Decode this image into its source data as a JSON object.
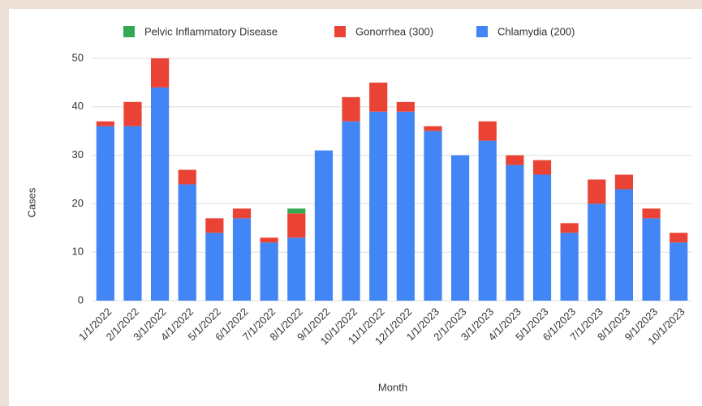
{
  "chart_data": {
    "type": "stacked_bar",
    "xlabel": "Month",
    "ylabel": "Cases",
    "categories": [
      "1/1/2022",
      "2/1/2022",
      "3/1/2022",
      "4/1/2022",
      "5/1/2022",
      "6/1/2022",
      "7/1/2022",
      "8/1/2022",
      "9/1/2022",
      "10/1/2022",
      "11/1/2022",
      "12/1/2022",
      "1/1/2023",
      "2/1/2023",
      "3/1/2023",
      "4/1/2023",
      "5/1/2023",
      "6/1/2023",
      "7/1/2023",
      "8/1/2023",
      "9/1/2023",
      "10/1/2023"
    ],
    "series": [
      {
        "name": "Pelvic Inflammatory Disease",
        "color": "#34a853",
        "values": [
          0,
          0,
          0,
          0,
          0,
          0,
          0,
          1,
          0,
          0,
          0,
          0,
          0,
          0,
          0,
          0,
          0,
          0,
          0,
          0,
          0,
          0
        ]
      },
      {
        "name": "Gonorrhea (300)",
        "color": "#ea4335",
        "values": [
          1,
          5,
          6,
          3,
          3,
          2,
          1,
          5,
          0,
          5,
          6,
          2,
          1,
          0,
          4,
          2,
          3,
          2,
          5,
          3,
          2,
          2
        ]
      },
      {
        "name": "Chlamydia (200)",
        "color": "#4285f4",
        "values": [
          36,
          36,
          44,
          24,
          14,
          17,
          12,
          13,
          31,
          37,
          39,
          39,
          35,
          30,
          33,
          28,
          26,
          14,
          20,
          23,
          17,
          12
        ]
      }
    ],
    "ylim": [
      0,
      50
    ],
    "yticks": [
      0,
      10,
      20,
      30,
      40,
      50
    ],
    "grid": true,
    "legend": "top"
  }
}
